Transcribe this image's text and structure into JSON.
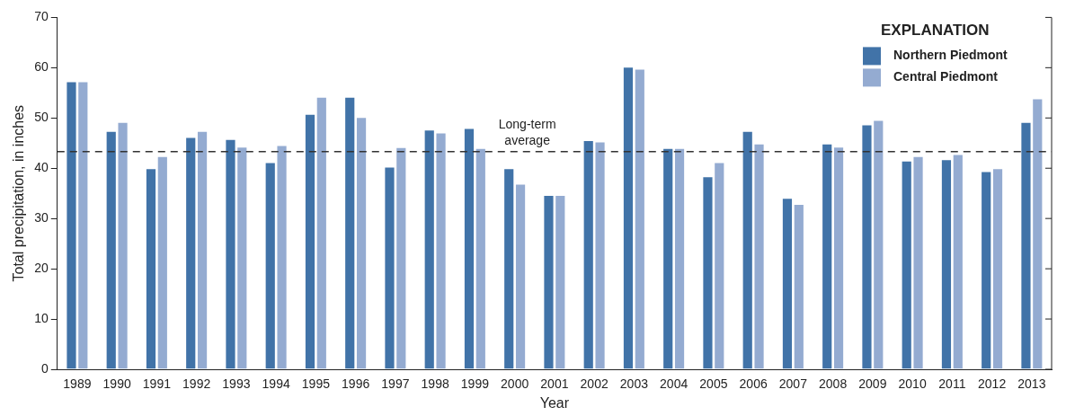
{
  "chart_data": {
    "type": "bar",
    "xlabel": "Year",
    "ylabel": "Total precipitation, in inches",
    "legend_title": "EXPLANATION",
    "legend": "top right",
    "categories": [
      "1989",
      "1990",
      "1991",
      "1992",
      "1993",
      "1994",
      "1995",
      "1996",
      "1997",
      "1998",
      "1999",
      "2000",
      "2001",
      "2002",
      "2003",
      "2004",
      "2005",
      "2006",
      "2007",
      "2008",
      "2009",
      "2010",
      "2011",
      "2012",
      "2013"
    ],
    "series": [
      {
        "name": "Northern Piedmont",
        "color": "#4173a8",
        "values": [
          57.3,
          47.4,
          40.0,
          46.2,
          45.8,
          41.2,
          50.8,
          54.2,
          40.3,
          47.7,
          48.0,
          40.0,
          34.7,
          45.6,
          60.2,
          44.0,
          38.4,
          47.4,
          34.1,
          44.9,
          48.7,
          41.5,
          41.8,
          39.4,
          49.2
        ]
      },
      {
        "name": "Central Piedmont",
        "color": "#94abd1",
        "values": [
          57.3,
          49.2,
          42.4,
          47.4,
          44.3,
          44.6,
          54.2,
          50.2,
          44.2,
          47.1,
          44.0,
          36.9,
          34.7,
          45.3,
          59.8,
          44.0,
          41.2,
          44.9,
          32.9,
          44.3,
          49.6,
          42.4,
          42.8,
          40.0,
          53.9
        ]
      }
    ],
    "ylim": [
      0,
      70
    ],
    "yticks": [
      0,
      10,
      20,
      30,
      40,
      50,
      60,
      70
    ],
    "grid": false,
    "ref_lines": [
      {
        "axis": "y",
        "value": 43.3,
        "label": "Long-term average",
        "line_style": "dashed",
        "color": "#333333"
      }
    ]
  }
}
